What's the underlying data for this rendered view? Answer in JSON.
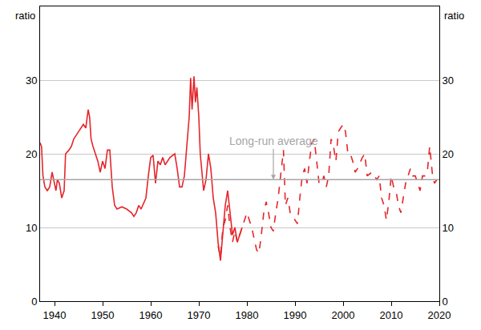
{
  "chart_data": {
    "type": "line",
    "y_label": "ratio",
    "y2_label": "ratio",
    "xlim": [
      1937,
      2020
    ],
    "xticks": [
      1940,
      1950,
      1960,
      1970,
      1980,
      1990,
      2000,
      2010,
      2020
    ],
    "ylim": [
      0,
      40
    ],
    "yticks": [
      0,
      10,
      20,
      30
    ],
    "y2lim": [
      0,
      40
    ],
    "y2ticks": [
      0,
      10,
      20,
      30
    ],
    "grid": true,
    "series": [
      {
        "color": "#e5262b",
        "line_style": "solid",
        "x": [
          1937.0,
          1937.3,
          1937.6,
          1938.0,
          1938.5,
          1939.0,
          1939.5,
          1940.0,
          1940.3,
          1940.6,
          1941.0,
          1941.5,
          1942.0,
          1942.3,
          1943.0,
          1943.5,
          1944.0,
          1945.0,
          1946.0,
          1946.5,
          1947.0,
          1947.3,
          1947.6,
          1948.0,
          1949.0,
          1949.5,
          1950.0,
          1950.5,
          1951.0,
          1951.5,
          1952.0,
          1952.5,
          1953.0,
          1954.0,
          1955.0,
          1956.0,
          1956.5,
          1957.0,
          1957.5,
          1958.0,
          1959.0,
          1959.5,
          1960.0,
          1960.5,
          1961.0,
          1961.5,
          1962.0,
          1962.5,
          1963.0,
          1964.0,
          1965.0,
          1965.5,
          1966.0,
          1966.5,
          1967.0,
          1967.5,
          1968.0,
          1968.3,
          1968.6,
          1969.0,
          1969.3,
          1969.6,
          1970.0,
          1970.3,
          1970.6,
          1971.0,
          1971.5,
          1972.0,
          1972.5,
          1973.0,
          1973.5,
          1974.0,
          1974.5,
          1975.0,
          1975.5,
          1976.0,
          1976.5,
          1977.0,
          1977.5,
          1978.0,
          1978.5,
          1979.0
        ],
        "values": [
          21.5,
          21,
          17,
          15.5,
          15,
          15.5,
          17.5,
          16,
          15,
          16.5,
          16,
          14,
          15,
          20,
          20.5,
          21,
          22,
          23,
          24,
          23.5,
          26,
          25,
          22,
          21,
          19,
          17.5,
          19,
          18,
          20.5,
          20.5,
          15.5,
          13,
          12.5,
          12.8,
          12.5,
          12,
          11.5,
          12,
          13,
          12.5,
          14,
          17,
          19.5,
          19.8,
          16,
          19,
          18.5,
          19.5,
          18.5,
          19.5,
          20,
          18,
          15.5,
          15.5,
          17,
          21,
          25,
          30.3,
          26,
          30.5,
          27,
          29,
          25,
          20,
          18,
          15,
          16.5,
          20,
          18,
          14,
          12,
          8,
          5.5,
          9,
          13,
          15,
          12,
          9,
          10,
          8,
          9,
          10
        ]
      },
      {
        "color": "#e5262b",
        "line_style": "dash",
        "x": [
          1974.0,
          1974.5,
          1975.0,
          1975.5,
          1976.0,
          1976.5,
          1977.0,
          1977.5,
          1978.0,
          1979.0,
          1980.0,
          1980.5,
          1981.0,
          1982.0,
          1982.5,
          1983.0,
          1983.5,
          1984.0,
          1984.5,
          1985.0,
          1985.5,
          1986.0,
          1986.5,
          1987.0,
          1987.6,
          1988.0,
          1988.5,
          1989.0,
          1990.0,
          1990.5,
          1991.0,
          1991.5,
          1992.0,
          1992.5,
          1993.0,
          1993.5,
          1994.0,
          1994.5,
          1995.0,
          1995.5,
          1996.0,
          1996.5,
          1997.0,
          1997.5,
          1998.0,
          1998.5,
          1999.0,
          1999.5,
          2000.0,
          2000.5,
          2001.0,
          2001.5,
          2002.0,
          2002.5,
          2003.0,
          2004.0,
          2004.5,
          2005.0,
          2006.0,
          2007.0,
          2007.5,
          2008.0,
          2008.5,
          2009.0,
          2009.5,
          2010.0,
          2010.5,
          2011.0,
          2011.5,
          2012.0,
          2012.5,
          2013.0,
          2013.5,
          2014.0,
          2014.5,
          2015.0,
          2015.5,
          2016.0,
          2016.5,
          2017.0,
          2017.5,
          2018.0,
          2018.3,
          2018.6,
          2019.0,
          2019.5
        ],
        "values": [
          7.5,
          6,
          10,
          11,
          13,
          10,
          8,
          9.5,
          8,
          10,
          12,
          11,
          10,
          7,
          6.5,
          9,
          12,
          13.5,
          12,
          10,
          9.5,
          12,
          14,
          17,
          20.5,
          13,
          14,
          12,
          11,
          10.5,
          14,
          17,
          18,
          16,
          19,
          21.5,
          22,
          19,
          16,
          16,
          17,
          15.5,
          17,
          22,
          21,
          19,
          23,
          23.5,
          24,
          23,
          20,
          20,
          19,
          17.5,
          18,
          19.5,
          20,
          17,
          17.5,
          16.5,
          17,
          14,
          13,
          11,
          13.5,
          17,
          15.5,
          15,
          13,
          12,
          14,
          16,
          17,
          18,
          17,
          17,
          16,
          15,
          17,
          17,
          17.5,
          21,
          19,
          17,
          16,
          16.5
        ]
      }
    ],
    "hline": {
      "value": 16.5,
      "color": "#a6a6a6"
    },
    "annotations": [
      {
        "text": "Long-run average",
        "x": 1985.5,
        "y": 16.5
      }
    ]
  }
}
